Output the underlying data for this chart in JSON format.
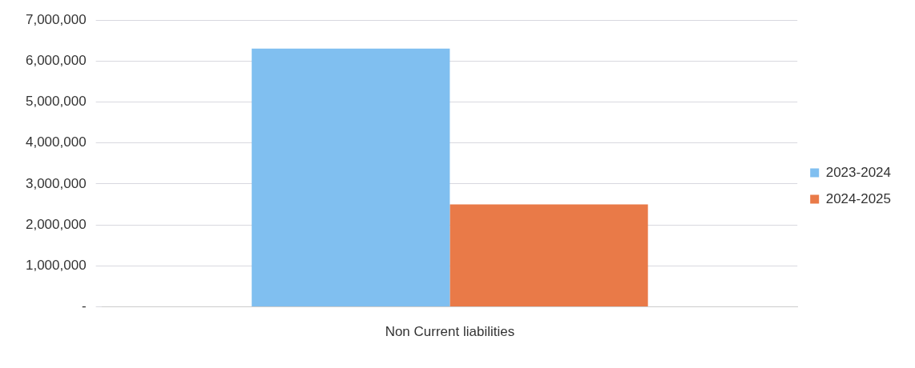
{
  "chart_data": {
    "type": "bar",
    "categories": [
      "Non Current liabilities"
    ],
    "series": [
      {
        "name": "2023-2024",
        "color": "#80bff0",
        "values": [
          6300000
        ]
      },
      {
        "name": "2024-2025",
        "color": "#e97a48",
        "values": [
          2500000
        ]
      }
    ],
    "ylim": [
      0,
      7000000
    ],
    "yticks": [
      {
        "value": 0,
        "label": "-"
      },
      {
        "value": 1000000,
        "label": "1,000,000"
      },
      {
        "value": 2000000,
        "label": "2,000,000"
      },
      {
        "value": 3000000,
        "label": "3,000,000"
      },
      {
        "value": 4000000,
        "label": "4,000,000"
      },
      {
        "value": 5000000,
        "label": "5,000,000"
      },
      {
        "value": 6000000,
        "label": "6,000,000"
      },
      {
        "value": 7000000,
        "label": "7,000,000"
      }
    ],
    "grid": "y",
    "legend": "right"
  }
}
